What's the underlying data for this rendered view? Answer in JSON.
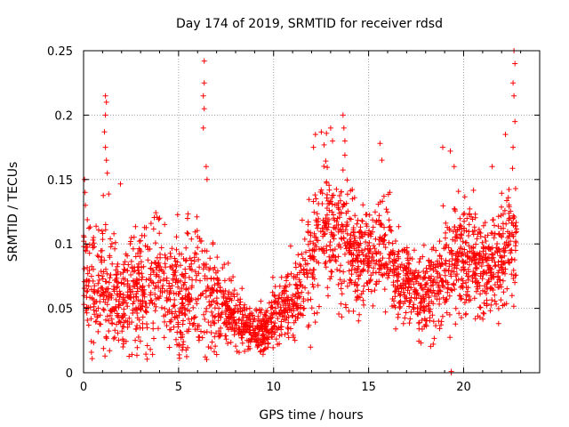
{
  "chart_data": {
    "type": "scatter",
    "title": "Day 174 of 2019, SRMTID for receiver rdsd",
    "xlabel": "GPS time / hours",
    "ylabel": "SRMTID / TECUs",
    "xlim": [
      0,
      24
    ],
    "ylim": [
      0,
      0.25
    ],
    "x_ticks": [
      0,
      5,
      10,
      15,
      20
    ],
    "x_tick_labels": [
      "0",
      "5",
      "10",
      "15",
      "20"
    ],
    "y_ticks": [
      0,
      0.05,
      0.1,
      0.15,
      0.2,
      0.25
    ],
    "y_tick_labels": [
      "0",
      "0.05",
      "0.1",
      "0.15",
      "0.2",
      "0.25"
    ],
    "grid": true,
    "marker": "+",
    "colors": {
      "series": "#ff0000",
      "grid": "#a0a0a0",
      "axis": "#000000"
    },
    "series": [
      {
        "name": "SRMTID",
        "profile_hours": [
          0,
          0.2,
          0.5,
          1,
          1.5,
          2,
          2.5,
          3,
          3.5,
          4,
          4.5,
          5,
          5.5,
          6,
          6.5,
          7,
          7.5,
          8,
          8.5,
          9,
          9.5,
          10,
          10.5,
          11,
          11.5,
          12,
          12.5,
          13,
          13.5,
          14,
          14.5,
          15,
          15.5,
          16,
          16.5,
          17,
          17.5,
          18,
          18.5,
          19,
          19.5,
          20,
          20.5,
          21,
          21.5,
          22,
          22.5,
          22.8
        ],
        "profile_center": [
          0.085,
          0.075,
          0.065,
          0.065,
          0.058,
          0.06,
          0.06,
          0.06,
          0.065,
          0.075,
          0.07,
          0.06,
          0.06,
          0.065,
          0.06,
          0.055,
          0.05,
          0.04,
          0.035,
          0.032,
          0.03,
          0.04,
          0.05,
          0.055,
          0.065,
          0.09,
          0.12,
          0.115,
          0.11,
          0.1,
          0.085,
          0.09,
          0.095,
          0.1,
          0.07,
          0.07,
          0.06,
          0.06,
          0.075,
          0.08,
          0.085,
          0.09,
          0.085,
          0.08,
          0.08,
          0.09,
          0.1,
          0.11
        ],
        "profile_spread": [
          0.03,
          0.03,
          0.03,
          0.035,
          0.03,
          0.03,
          0.03,
          0.03,
          0.03,
          0.03,
          0.03,
          0.03,
          0.03,
          0.03,
          0.03,
          0.025,
          0.02,
          0.015,
          0.012,
          0.012,
          0.012,
          0.015,
          0.018,
          0.02,
          0.025,
          0.03,
          0.035,
          0.035,
          0.035,
          0.03,
          0.025,
          0.025,
          0.025,
          0.03,
          0.02,
          0.02,
          0.02,
          0.02,
          0.025,
          0.025,
          0.03,
          0.03,
          0.025,
          0.025,
          0.025,
          0.03,
          0.03,
          0.035
        ],
        "spikes": [
          {
            "x": 0.05,
            "y": 0.15
          },
          {
            "x": 0.08,
            "y": 0.14
          },
          {
            "x": 0.1,
            "y": 0.13
          },
          {
            "x": 1.15,
            "y": 0.215
          },
          {
            "x": 1.2,
            "y": 0.21
          },
          {
            "x": 1.15,
            "y": 0.2
          },
          {
            "x": 1.1,
            "y": 0.187
          },
          {
            "x": 1.15,
            "y": 0.175
          },
          {
            "x": 1.2,
            "y": 0.165
          },
          {
            "x": 1.25,
            "y": 0.155
          },
          {
            "x": 6.35,
            "y": 0.242
          },
          {
            "x": 6.35,
            "y": 0.225
          },
          {
            "x": 6.3,
            "y": 0.215
          },
          {
            "x": 6.35,
            "y": 0.205
          },
          {
            "x": 6.3,
            "y": 0.19
          },
          {
            "x": 6.45,
            "y": 0.16
          },
          {
            "x": 6.5,
            "y": 0.15
          },
          {
            "x": 12.2,
            "y": 0.185
          },
          {
            "x": 12.1,
            "y": 0.175
          },
          {
            "x": 13.0,
            "y": 0.19
          },
          {
            "x": 13.1,
            "y": 0.18
          },
          {
            "x": 13.65,
            "y": 0.2
          },
          {
            "x": 13.7,
            "y": 0.19
          },
          {
            "x": 13.75,
            "y": 0.18
          },
          {
            "x": 15.6,
            "y": 0.178
          },
          {
            "x": 15.7,
            "y": 0.165
          },
          {
            "x": 18.9,
            "y": 0.175
          },
          {
            "x": 19.3,
            "y": 0.172
          },
          {
            "x": 19.5,
            "y": 0.16
          },
          {
            "x": 21.5,
            "y": 0.16
          },
          {
            "x": 22.2,
            "y": 0.185
          },
          {
            "x": 22.65,
            "y": 0.25
          },
          {
            "x": 22.7,
            "y": 0.24
          },
          {
            "x": 22.6,
            "y": 0.225
          },
          {
            "x": 22.65,
            "y": 0.215
          },
          {
            "x": 22.7,
            "y": 0.195
          },
          {
            "x": 22.6,
            "y": 0.175
          }
        ],
        "zero_markers": [
          {
            "x": 19.35,
            "y": 0.0
          },
          {
            "x": 19.35,
            "y": 0.001
          }
        ]
      }
    ]
  }
}
